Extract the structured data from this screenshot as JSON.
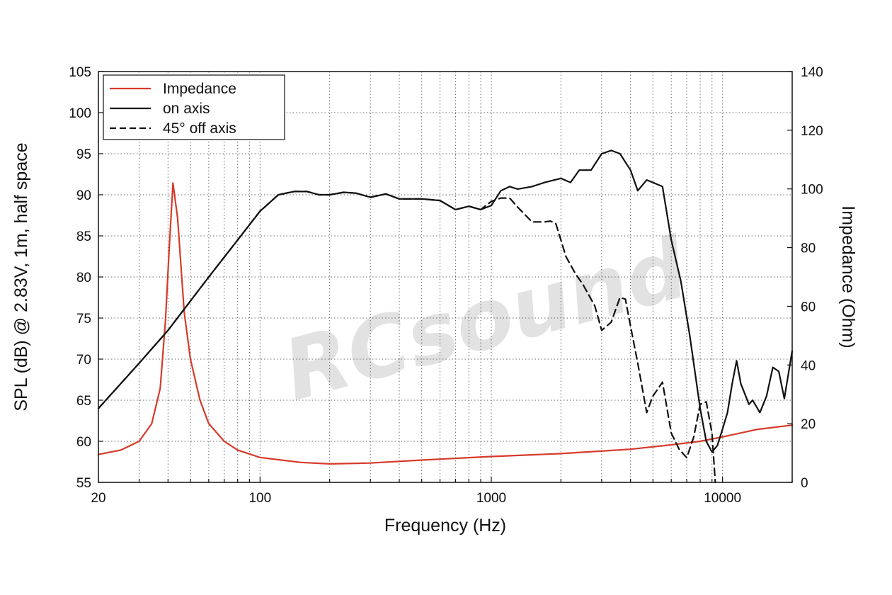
{
  "watermark": "RCsound",
  "chart_data": {
    "type": "line",
    "xlabel": "Frequency (Hz)",
    "ylabel": "SPL (dB) @ 2.83V, 1m, half space",
    "y2label": "Impedance (Ohm)",
    "x_scale": "log",
    "xlim": [
      20,
      20000
    ],
    "ylim": [
      55,
      105
    ],
    "y2lim": [
      0,
      140
    ],
    "x_ticks": [
      20,
      100,
      1000,
      10000
    ],
    "y_ticks": [
      55,
      60,
      65,
      70,
      75,
      80,
      85,
      90,
      95,
      100,
      105
    ],
    "y2_ticks": [
      0,
      20,
      40,
      60,
      80,
      100,
      120,
      140
    ],
    "grid": true,
    "legend_position": "top-left",
    "series": [
      {
        "name": "Impedance",
        "axis": "right",
        "color": "#d63a2b",
        "dash": "solid",
        "x": [
          20,
          25,
          30,
          34,
          37,
          39,
          40.5,
          42,
          44,
          47,
          50,
          55,
          60,
          70,
          80,
          100,
          150,
          200,
          300,
          500,
          1000,
          2000,
          4000,
          6000,
          8000,
          10000,
          14000,
          20000
        ],
        "y": [
          9.5,
          11,
          14,
          20,
          32,
          55,
          80,
          102,
          90,
          58,
          42,
          28,
          20,
          14,
          11,
          8.5,
          6.8,
          6.3,
          6.6,
          7.6,
          8.8,
          9.8,
          11.3,
          12.8,
          14,
          15.5,
          18,
          19.5
        ]
      },
      {
        "name": "on axis",
        "axis": "left",
        "color": "#111111",
        "dash": "solid",
        "x": [
          20,
          30,
          40,
          60,
          80,
          100,
          120,
          140,
          160,
          180,
          200,
          230,
          260,
          300,
          350,
          400,
          500,
          600,
          700,
          800,
          900,
          1000,
          1100,
          1200,
          1300,
          1500,
          1700,
          2000,
          2200,
          2400,
          2700,
          3000,
          3300,
          3600,
          4000,
          4300,
          4700,
          5000,
          5500,
          6000,
          6600,
          7200,
          8000,
          8500,
          9000,
          9500,
          10000,
          10500,
          11000,
          11500,
          12000,
          13000,
          13500,
          14500,
          15500,
          16500,
          17500,
          18500,
          20000
        ],
        "y": [
          64,
          69.5,
          73.5,
          80,
          84.5,
          88,
          90,
          90.4,
          90.4,
          90,
          90,
          90.3,
          90.2,
          89.7,
          90.1,
          89.5,
          89.5,
          89.3,
          88.2,
          88.6,
          88.2,
          88.7,
          90.5,
          91,
          90.7,
          91,
          91.5,
          92,
          91.5,
          93,
          93,
          95,
          95.4,
          95,
          93,
          90.5,
          91.8,
          91.5,
          91,
          84.5,
          79.5,
          73,
          64,
          60,
          58.7,
          59.5,
          61.5,
          63.5,
          67,
          69.8,
          67,
          64.5,
          65,
          63.5,
          65.5,
          69,
          68.5,
          65.2,
          71
        ]
      },
      {
        "name": "45° off axis",
        "axis": "left",
        "color": "#111111",
        "dash": "dashed",
        "x": [
          20,
          30,
          40,
          60,
          80,
          100,
          120,
          140,
          160,
          180,
          200,
          230,
          260,
          300,
          350,
          400,
          500,
          600,
          700,
          800,
          900,
          1000,
          1100,
          1200,
          1300,
          1500,
          1700,
          1800,
          1900,
          2000,
          2100,
          2300,
          2500,
          2800,
          3000,
          3300,
          3600,
          3800,
          4000,
          4300,
          4700,
          5000,
          5500,
          6000,
          6500,
          7000,
          7500,
          8000,
          8500,
          9000,
          9300
        ],
        "y": [
          64,
          69.5,
          73.5,
          80,
          84.5,
          88,
          90,
          90.4,
          90.4,
          90,
          90,
          90.3,
          90.2,
          89.7,
          90.1,
          89.5,
          89.5,
          89.3,
          88.2,
          88.6,
          88.2,
          89.2,
          89.6,
          89.6,
          88.5,
          86.7,
          86.7,
          86.8,
          86.5,
          84.5,
          82.5,
          80.5,
          79,
          76.5,
          73.5,
          74.5,
          77.5,
          77.3,
          74,
          69.5,
          63.5,
          65.5,
          67.2,
          61,
          59,
          58,
          60.5,
          64.5,
          64.8,
          61,
          55
        ]
      }
    ]
  }
}
